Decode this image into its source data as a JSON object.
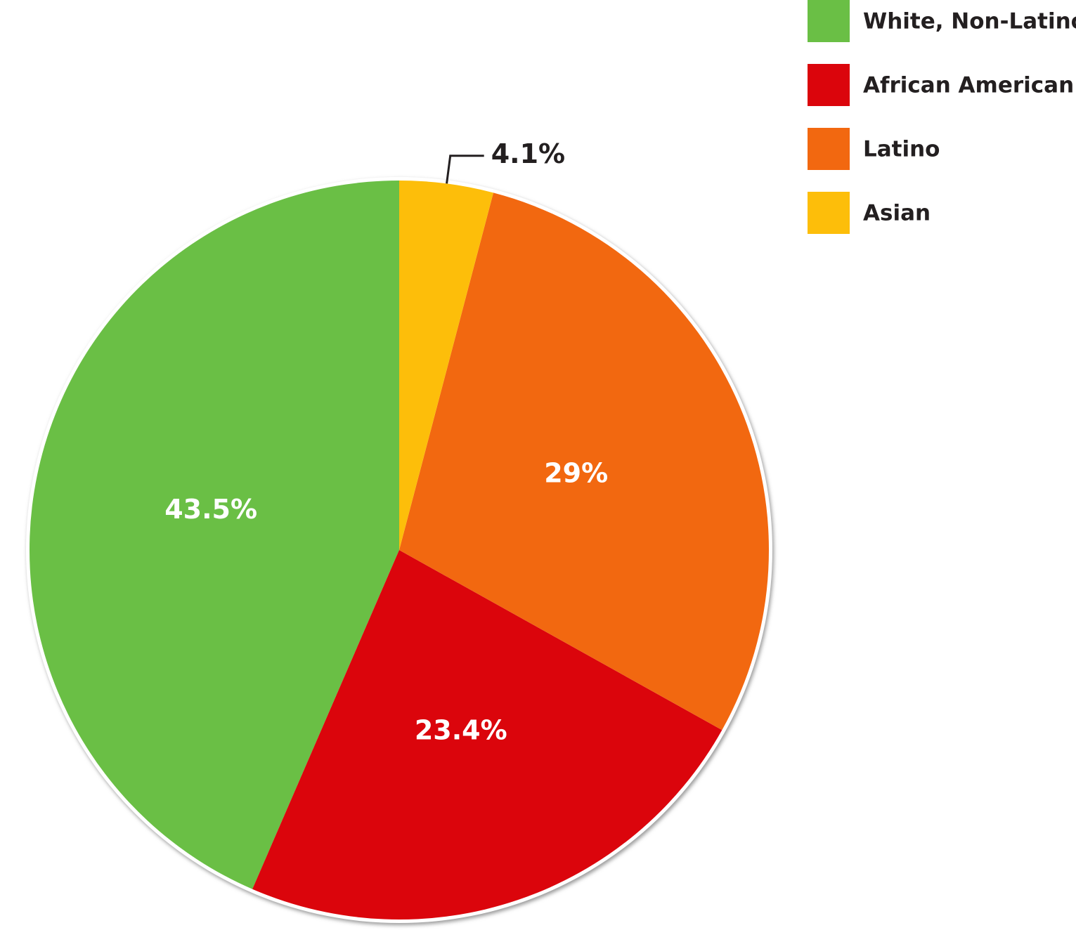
{
  "chart_data": {
    "type": "pie",
    "categories": [
      "White, Non-Latino",
      "African American",
      "Latino",
      "Asian"
    ],
    "values": [
      43.5,
      23.4,
      29,
      4.1
    ],
    "value_labels": [
      "43.5%",
      "23.4%",
      "29%",
      "4.1%"
    ],
    "colors": [
      "#6abf45",
      "#db050c",
      "#f26810",
      "#fdbe0a"
    ],
    "legend": "top-right"
  }
}
